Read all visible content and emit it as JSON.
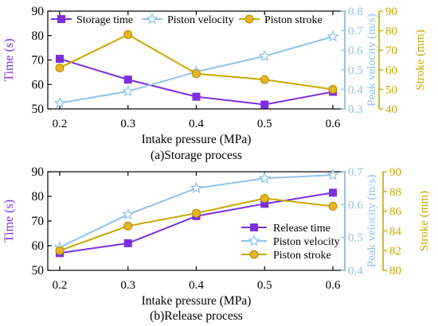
{
  "colors": {
    "purple": "#7B2FE0",
    "lightblue": "#8FC3EA",
    "gold": "#C8A800",
    "goldfill": "#E6B422",
    "axis": "#000000"
  },
  "chart_data": [
    {
      "type": "line",
      "title": "",
      "caption": "(a)Storage process",
      "xlabel": "Intake pressure (MPa)",
      "categories": [
        "0.2",
        "0.3",
        "0.4",
        "0.5",
        "0.6"
      ],
      "x": [
        0.2,
        0.3,
        0.4,
        0.5,
        0.6
      ],
      "xlim": [
        0.2,
        0.6
      ],
      "legend_position": "top-inside",
      "axes": {
        "left": {
          "label": "Time (s)",
          "ylim": [
            50,
            90
          ],
          "ticks": [
            50,
            60,
            70,
            80,
            90
          ]
        },
        "right1": {
          "label": "Peak velocity (m/s)",
          "ylim": [
            0.3,
            0.8
          ],
          "ticks": [
            "0.3",
            "0.4",
            "0.5",
            "0.6",
            "0.7",
            "0.8"
          ]
        },
        "right2": {
          "label": "Stroke (mm)",
          "ylim": [
            40,
            90
          ],
          "ticks": [
            40,
            50,
            60,
            70,
            80,
            90
          ]
        }
      },
      "series": [
        {
          "name": "Storage time",
          "axis": "left",
          "marker": "square",
          "color_key": "purple",
          "values": [
            70.5,
            62,
            55,
            51.8,
            57
          ]
        },
        {
          "name": "Piston velocity",
          "axis": "right1",
          "marker": "star",
          "color_key": "lightblue",
          "values": [
            0.33,
            0.39,
            0.49,
            0.57,
            0.67
          ]
        },
        {
          "name": "Piston stroke",
          "axis": "right2",
          "marker": "circle",
          "color_key": "gold",
          "values": [
            61,
            78,
            58,
            55,
            50
          ]
        }
      ]
    },
    {
      "type": "line",
      "title": "",
      "caption": "(b)Release process",
      "xlabel": "Intake pressure (MPa)",
      "categories": [
        "0.2",
        "0.3",
        "0.4",
        "0.5",
        "0.6"
      ],
      "x": [
        0.2,
        0.3,
        0.4,
        0.5,
        0.6
      ],
      "xlim": [
        0.2,
        0.6
      ],
      "legend_position": "bottom-right",
      "axes": {
        "left": {
          "label": "Time (s)",
          "ylim": [
            50,
            90
          ],
          "ticks": [
            50,
            60,
            70,
            80,
            90
          ]
        },
        "right1": {
          "label": "Peak velocity (m/s)",
          "ylim": [
            0.4,
            0.7
          ],
          "ticks": [
            "0.4",
            "0.5",
            "0.6",
            "0.7"
          ]
        },
        "right2": {
          "label": "Stroke (mm)",
          "ylim": [
            80,
            90
          ],
          "ticks": [
            80,
            82,
            84,
            86,
            88,
            90
          ]
        }
      },
      "series": [
        {
          "name": "Release time",
          "axis": "left",
          "marker": "square",
          "color_key": "purple",
          "values": [
            57,
            61,
            72,
            77,
            81.5
          ]
        },
        {
          "name": "Piston velocity",
          "axis": "right1",
          "marker": "star",
          "color_key": "lightblue",
          "values": [
            0.47,
            0.57,
            0.65,
            0.68,
            0.69
          ]
        },
        {
          "name": "Piston stroke",
          "axis": "right2",
          "marker": "circle",
          "color_key": "gold",
          "values": [
            82,
            84.5,
            85.8,
            87.3,
            86.5
          ]
        }
      ]
    }
  ]
}
